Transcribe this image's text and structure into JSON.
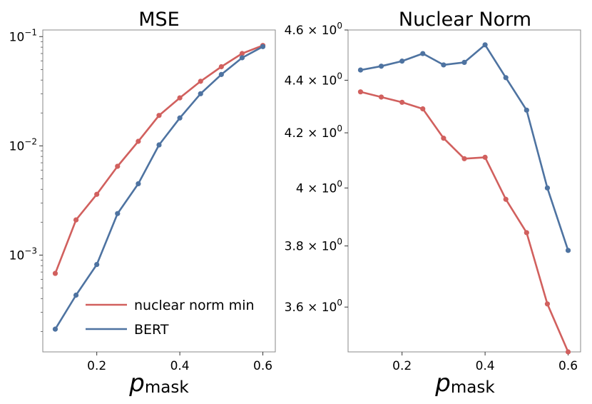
{
  "chart_data": [
    {
      "type": "line",
      "title": "MSE",
      "xlabel_main": "p",
      "xlabel_sub": "mask",
      "yscale": "log",
      "xlim": [
        0.07,
        0.63
      ],
      "ylim": [
        0.00013,
        0.115
      ],
      "xticks": [
        0.2,
        0.4,
        0.6
      ],
      "xtick_labels": [
        "0.2",
        "0.4",
        "0.6"
      ],
      "yticks": [
        {
          "value": 0.1,
          "base": "10",
          "exp": "−1"
        },
        {
          "value": 0.01,
          "base": "10",
          "exp": "−2"
        },
        {
          "value": 0.001,
          "base": "10",
          "exp": "−3"
        }
      ],
      "x": [
        0.1,
        0.15,
        0.2,
        0.25,
        0.3,
        0.35,
        0.4,
        0.45,
        0.5,
        0.55,
        0.6
      ],
      "series": [
        {
          "name": "nuclear norm min",
          "color": "#d1605e",
          "values": [
            0.00068,
            0.0021,
            0.0036,
            0.0065,
            0.011,
            0.019,
            0.0275,
            0.039,
            0.053,
            0.07,
            0.083
          ]
        },
        {
          "name": "BERT",
          "color": "#4e73a1",
          "values": [
            0.00021,
            0.00043,
            0.00082,
            0.0024,
            0.0045,
            0.0102,
            0.018,
            0.03,
            0.045,
            0.064,
            0.081
          ]
        }
      ],
      "legend": {
        "position": "lower-right",
        "entries": [
          "nuclear norm min",
          "BERT"
        ]
      }
    },
    {
      "type": "line",
      "title": "Nuclear Norm",
      "xlabel_main": "p",
      "xlabel_sub": "mask",
      "yscale": "log",
      "xlim": [
        0.07,
        0.63
      ],
      "ylim": [
        3.46,
        4.6
      ],
      "xticks": [
        0.2,
        0.4,
        0.6
      ],
      "xtick_labels": [
        "0.2",
        "0.4",
        "0.6"
      ],
      "yticks": [
        {
          "value": 4.6,
          "base": "4.6 × 10",
          "exp": "0"
        },
        {
          "value": 4.4,
          "base": "4.4 × 10",
          "exp": "0"
        },
        {
          "value": 4.2,
          "base": "4.2 × 10",
          "exp": "0"
        },
        {
          "value": 4.0,
          "base": "4 × 10",
          "exp": "0"
        },
        {
          "value": 3.8,
          "base": "3.8 × 10",
          "exp": "0"
        },
        {
          "value": 3.6,
          "base": "3.6 × 10",
          "exp": "0"
        }
      ],
      "x": [
        0.1,
        0.15,
        0.2,
        0.25,
        0.3,
        0.35,
        0.4,
        0.45,
        0.5,
        0.55,
        0.6
      ],
      "series": [
        {
          "name": "nuclear norm min",
          "color": "#d1605e",
          "values": [
            4.355,
            4.335,
            4.315,
            4.29,
            4.18,
            4.105,
            4.11,
            3.96,
            3.845,
            3.61,
            3.46
          ]
        },
        {
          "name": "BERT",
          "color": "#4e73a1",
          "values": [
            4.44,
            4.455,
            4.475,
            4.505,
            4.46,
            4.47,
            4.54,
            4.41,
            4.285,
            4.0,
            3.785
          ]
        }
      ]
    }
  ]
}
